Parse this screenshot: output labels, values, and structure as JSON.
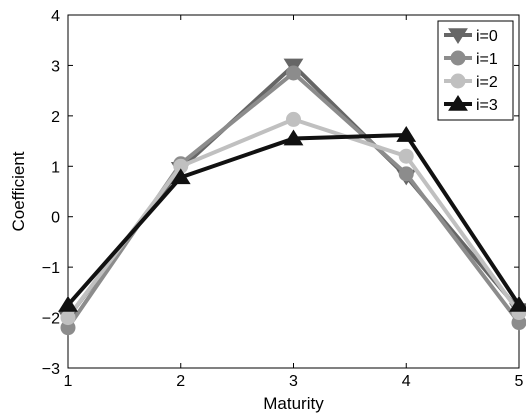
{
  "chart_data": {
    "type": "line",
    "title": "",
    "xlabel": "Maturity",
    "ylabel": "Coefficient",
    "x": [
      1,
      2,
      3,
      4,
      5
    ],
    "xlim": [
      1,
      5
    ],
    "ylim": [
      -3,
      4
    ],
    "xticks": [
      "1",
      "2",
      "3",
      "4",
      "5"
    ],
    "yticks": [
      "−3",
      "−2",
      "−1",
      "0",
      "1",
      "2",
      "3",
      "4"
    ],
    "grid": false,
    "legend_position": "top-right",
    "series": [
      {
        "name": "i=0",
        "values": [
          -2.0,
          0.95,
          3.0,
          0.8,
          -1.85
        ],
        "color": "#666666",
        "marker": "triangle-down"
      },
      {
        "name": "i=1",
        "values": [
          -2.2,
          1.05,
          2.85,
          0.85,
          -2.1
        ],
        "color": "#8c8c8c",
        "marker": "circle"
      },
      {
        "name": "i=2",
        "values": [
          -2.0,
          1.0,
          1.93,
          1.2,
          -1.9
        ],
        "color": "#c0c0c0",
        "marker": "circle"
      },
      {
        "name": "i=3",
        "values": [
          -1.75,
          0.78,
          1.55,
          1.62,
          -1.75
        ],
        "color": "#111111",
        "marker": "triangle-up"
      }
    ]
  }
}
